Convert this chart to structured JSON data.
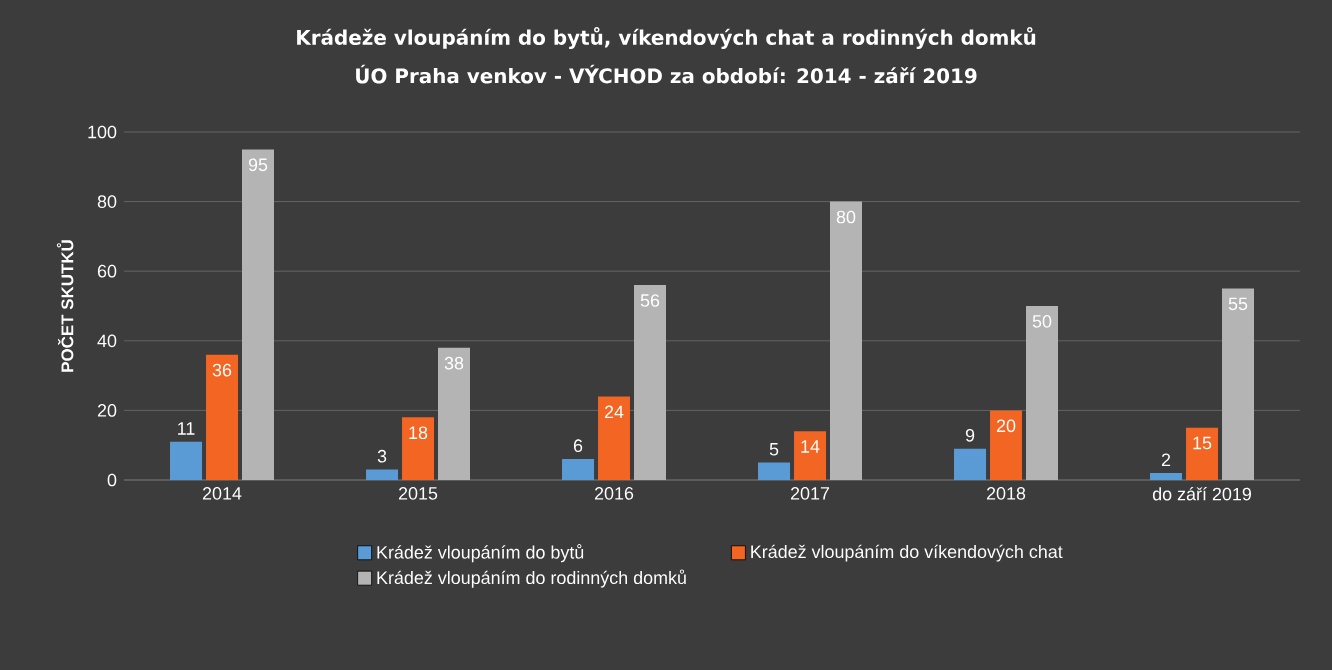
{
  "chart_data": {
    "type": "bar",
    "title": "Krádeže vloupáním do bytů, víkendových chat a rodinných domků",
    "subtitle": "ÚO Praha venkov - VÝCHOD za období: 2014 - září 2019",
    "ylabel": "POČET SKUTKŮ",
    "categories": [
      "2014",
      "2015",
      "2016",
      "2017",
      "2018",
      "do září 2019"
    ],
    "series": [
      {
        "name": "Krádež vloupáním do bytů",
        "color": "#5b9bd5",
        "values": [
          11,
          3,
          6,
          5,
          9,
          2
        ]
      },
      {
        "name": "Krádež vloupáním do víkendových chat",
        "color": "#f26522",
        "values": [
          36,
          18,
          24,
          14,
          20,
          15
        ]
      },
      {
        "name": "Krádež vloupáním do rodinných domků",
        "color": "#b4b4b4",
        "values": [
          95,
          38,
          56,
          80,
          50,
          55
        ]
      }
    ],
    "ylim": [
      0,
      100
    ],
    "yticks": [
      0,
      20,
      40,
      60,
      80,
      100
    ],
    "grid": "y",
    "legend": "bottom",
    "data_labels": true
  }
}
